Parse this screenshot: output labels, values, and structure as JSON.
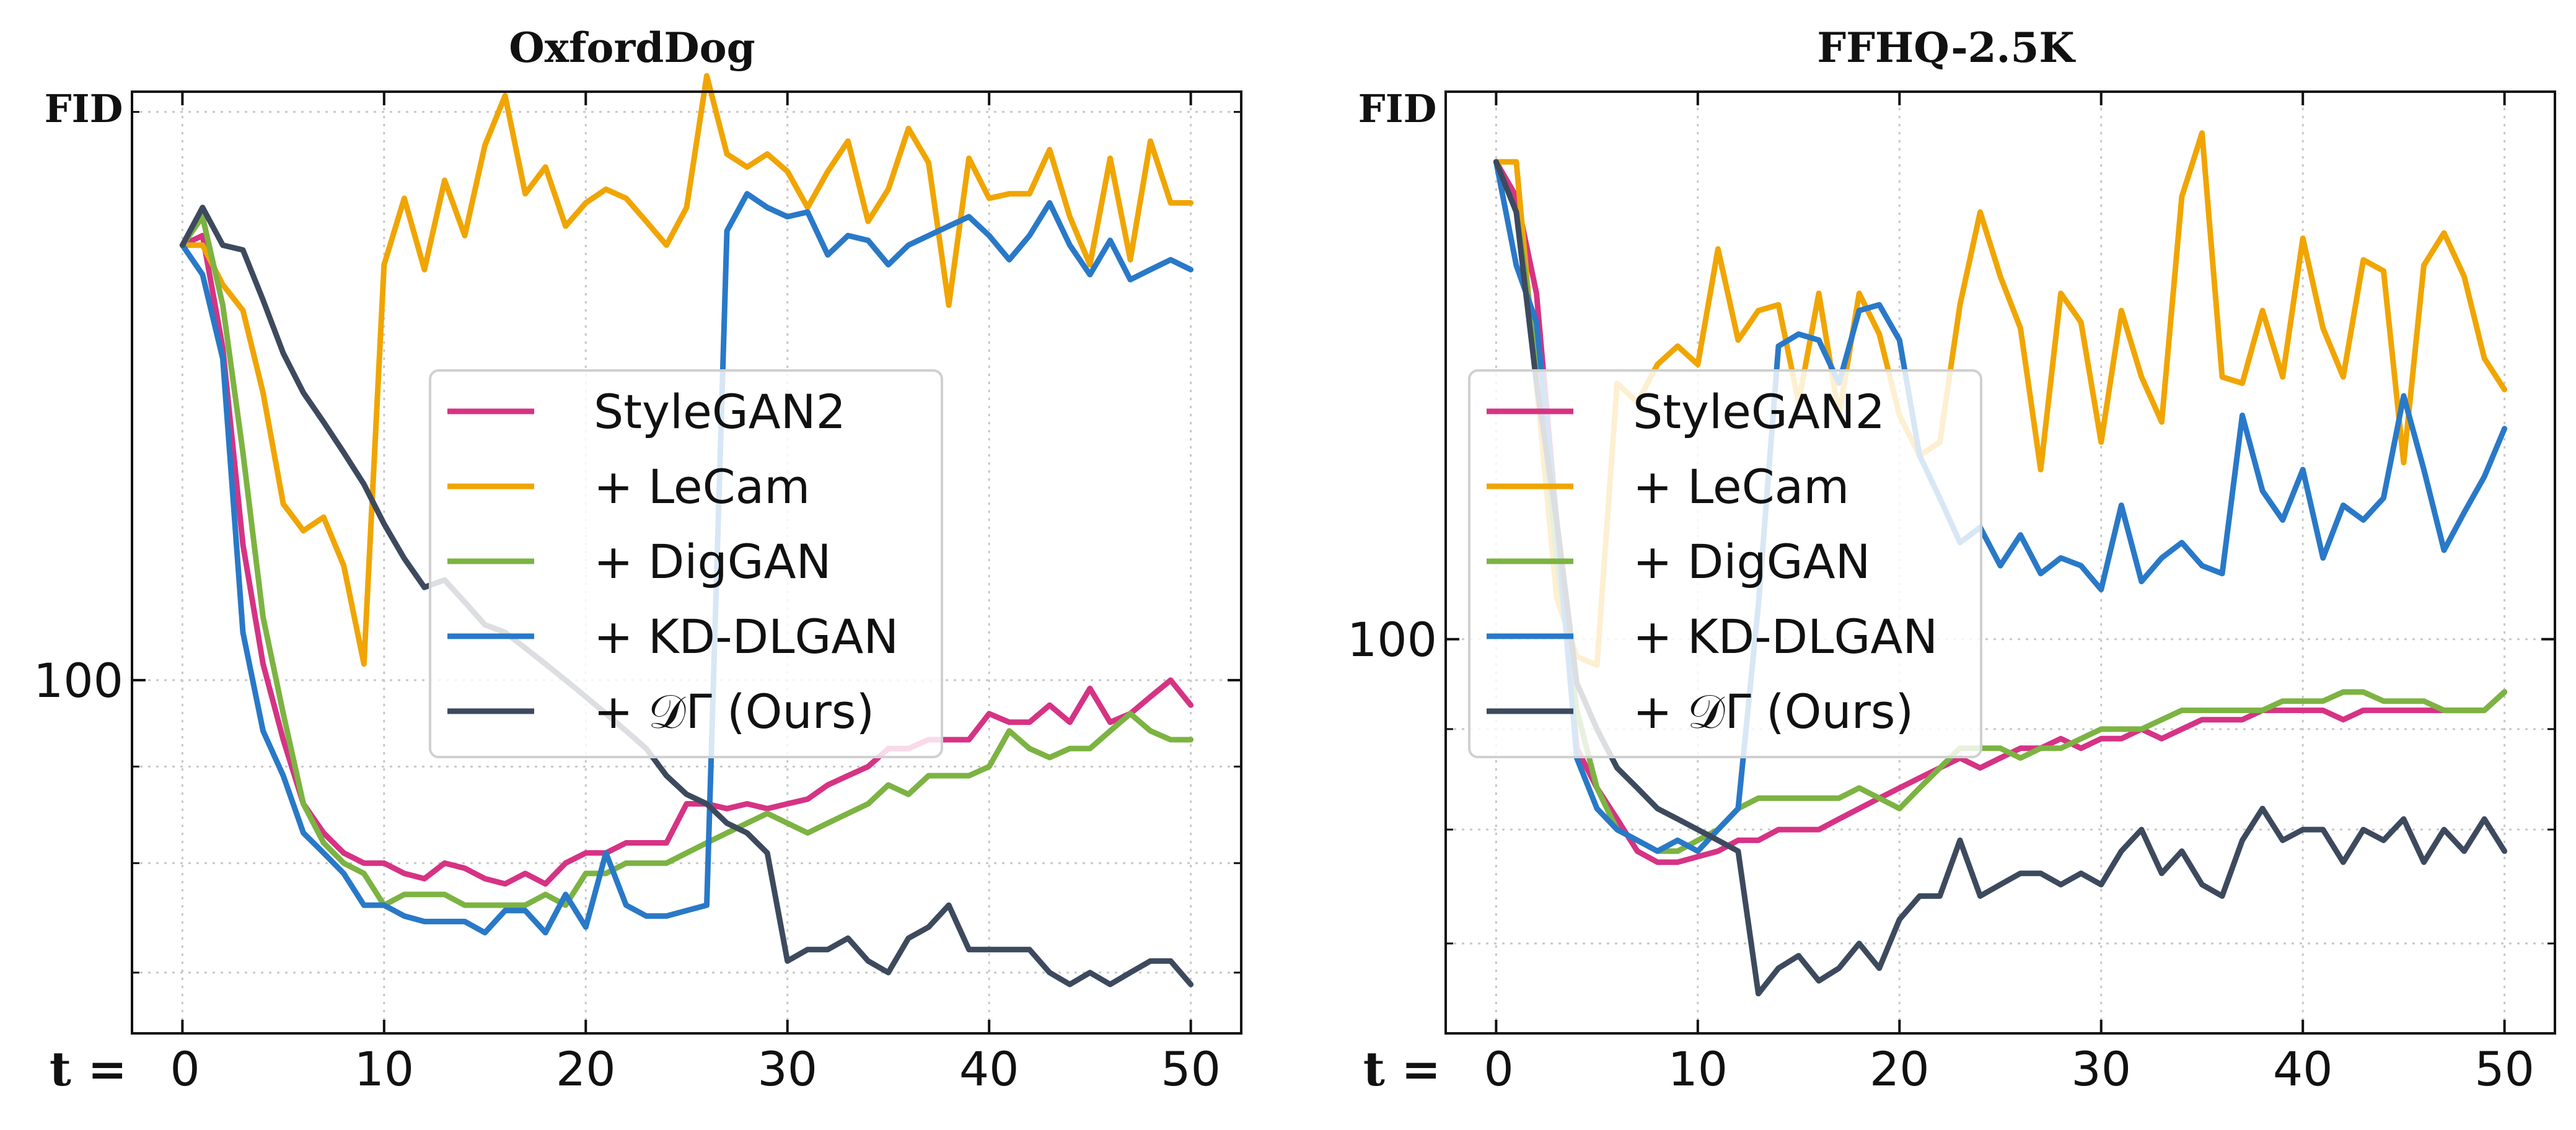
{
  "chart_data": [
    {
      "type": "line",
      "title": "OxfordDog",
      "ylabel": "FID",
      "x_prefix": "t =",
      "x": [
        0,
        1,
        2,
        3,
        4,
        5,
        6,
        7,
        8,
        9,
        10,
        11,
        12,
        13,
        14,
        15,
        16,
        17,
        18,
        19,
        20,
        21,
        22,
        23,
        24,
        25,
        26,
        27,
        28,
        29,
        30,
        31,
        32,
        33,
        34,
        35,
        36,
        37,
        38,
        39,
        40,
        41,
        42,
        43,
        44,
        45,
        46,
        47,
        48,
        49,
        50
      ],
      "xticks": [
        0,
        10,
        20,
        30,
        40,
        50
      ],
      "yticks": [
        100
      ],
      "yscale": "log",
      "ylim": [
        65,
        205
      ],
      "xlim": [
        -2.5,
        52.5
      ],
      "grid": true,
      "legend": "center",
      "series": [
        {
          "name": "StyleGAN2",
          "color": "#d63384",
          "values": [
            170,
            172,
            150,
            118,
            102,
            93,
            86,
            83,
            81,
            80,
            80,
            79,
            78.5,
            80,
            79.5,
            78.5,
            78,
            79,
            78,
            80,
            81,
            81,
            82,
            82,
            82,
            86,
            86,
            85.5,
            86,
            85.5,
            86,
            86.5,
            88,
            89,
            90,
            92,
            92,
            93,
            93,
            93,
            96,
            95,
            95,
            97,
            95,
            99,
            95,
            96,
            98,
            100,
            97
          ]
        },
        {
          "name": "+ LeCam",
          "color": "#f0a500",
          "values": [
            170,
            170,
            162,
            157,
            142,
            124,
            120,
            122,
            115,
            102,
            166,
            180,
            165,
            184,
            172,
            192,
            204,
            181,
            187,
            174,
            179,
            182,
            180,
            175,
            170,
            178,
            209,
            190,
            187,
            190,
            186,
            178,
            186,
            193,
            175,
            182,
            196,
            188,
            158,
            189,
            180,
            181,
            181,
            191,
            176,
            166,
            189,
            167,
            193,
            179,
            179
          ]
        },
        {
          "name": "+ DigGAN",
          "color": "#7cb342",
          "values": [
            170,
            176,
            158,
            132,
            108,
            96,
            86,
            82,
            80,
            79,
            76,
            77,
            77,
            77,
            76,
            76,
            76,
            76,
            77,
            76,
            79,
            79,
            80,
            80,
            80,
            81,
            82,
            83,
            84,
            85,
            84,
            83,
            84,
            85,
            86,
            88,
            87,
            89,
            89,
            89,
            90,
            94,
            92,
            91,
            92,
            92,
            94,
            96,
            94,
            93,
            93
          ]
        },
        {
          "name": "+ KD-DLGAN",
          "color": "#2979c8",
          "values": [
            170,
            164,
            148,
            106,
            94,
            89,
            83,
            81,
            79,
            76,
            76,
            75,
            74.5,
            74.5,
            74.5,
            73.5,
            75.5,
            75.5,
            73.5,
            77,
            74,
            81,
            76,
            75,
            75,
            75.5,
            76,
            173,
            181,
            178,
            176,
            177,
            168,
            172,
            171,
            166,
            170,
            172,
            174,
            176,
            172,
            167,
            172,
            179,
            170,
            164,
            171,
            163,
            165,
            167,
            165
          ]
        },
        {
          "name": "+ 𝒟Γ (Ours)",
          "color": "#3d4a5e",
          "values": [
            170,
            178,
            170,
            169,
            159,
            149,
            142,
            137,
            132,
            127,
            121,
            116,
            112,
            113,
            110,
            107,
            106,
            104,
            102,
            100,
            98,
            96,
            94,
            92,
            89,
            87,
            86,
            84,
            83,
            81,
            71,
            72,
            72,
            73,
            71,
            70,
            73,
            74,
            76,
            72,
            72,
            72,
            72,
            70,
            69,
            70,
            69,
            70,
            71,
            71,
            69
          ]
        }
      ]
    },
    {
      "type": "line",
      "title": "FFHQ-2.5K",
      "ylabel": "FID",
      "x_prefix": "t =",
      "x": [
        0,
        1,
        2,
        3,
        4,
        5,
        6,
        7,
        8,
        9,
        10,
        11,
        12,
        13,
        14,
        15,
        16,
        17,
        18,
        19,
        20,
        21,
        22,
        23,
        24,
        25,
        26,
        27,
        28,
        29,
        30,
        31,
        32,
        33,
        34,
        35,
        36,
        37,
        38,
        39,
        40,
        41,
        42,
        43,
        44,
        45,
        46,
        47,
        48,
        49,
        50
      ],
      "xticks": [
        0,
        10,
        20,
        30,
        40,
        50
      ],
      "yticks": [
        100
      ],
      "yscale": "log",
      "ylim": [
        63,
        190
      ],
      "xlim": [
        -2.5,
        52.5
      ],
      "grid": true,
      "legend": "center",
      "series": [
        {
          "name": "StyleGAN2",
          "color": "#d63384",
          "values": [
            175,
            168,
            150,
            115,
            88,
            84,
            81,
            78,
            77,
            77,
            77.5,
            78,
            79,
            79,
            80,
            80,
            80,
            81,
            82,
            83,
            84,
            85,
            86,
            87,
            86,
            87,
            88,
            88,
            89,
            88,
            89,
            89,
            90,
            89,
            90,
            91,
            91,
            91,
            92,
            92,
            92,
            92,
            91,
            92,
            92,
            92,
            92,
            92,
            92,
            92,
            94
          ]
        },
        {
          "name": "+ LeCam",
          "color": "#f0a500",
          "values": [
            175,
            175,
            135,
            105,
            98,
            97,
            135,
            132,
            138,
            141,
            138,
            158,
            142,
            147,
            148,
            132,
            150,
            130,
            150,
            143,
            130,
            124,
            126,
            148,
            165,
            153,
            144,
            122,
            150,
            145,
            126,
            147,
            136,
            129,
            168,
            181,
            136,
            135,
            147,
            136,
            160,
            144,
            136,
            156,
            154,
            123,
            155,
            161,
            153,
            139,
            134
          ]
        },
        {
          "name": "+ DigGAN",
          "color": "#7cb342",
          "values": [
            175,
            165,
            140,
            110,
            92,
            84,
            80,
            79,
            78,
            78,
            79,
            80,
            82,
            83,
            83,
            83,
            83,
            83,
            84,
            83,
            82,
            84,
            86,
            88,
            88,
            88,
            87,
            88,
            88,
            89,
            90,
            90,
            90,
            91,
            92,
            92,
            92,
            92,
            92,
            93,
            93,
            93,
            94,
            94,
            93,
            93,
            93,
            92,
            92,
            92,
            94
          ]
        },
        {
          "name": "+ KD-DLGAN",
          "color": "#2979c8",
          "values": [
            175,
            155,
            145,
            115,
            87,
            82,
            80,
            79,
            78,
            79,
            78,
            80,
            82,
            104,
            141,
            143,
            142,
            135,
            147,
            148,
            142,
            124,
            118,
            112,
            114,
            109,
            113,
            108,
            110,
            109,
            106,
            117,
            107,
            110,
            112,
            109,
            108,
            130,
            119,
            115,
            122,
            110,
            117,
            115,
            118,
            133,
            122,
            111,
            116,
            121,
            128
          ]
        },
        {
          "name": "+ 𝒟Γ (Ours)",
          "color": "#3d4a5e",
          "values": [
            175,
            165,
            135,
            115,
            95,
            90,
            86,
            84,
            82,
            81,
            80,
            79,
            78,
            66,
            68,
            69,
            67,
            68,
            70,
            68,
            72,
            74,
            74,
            79,
            74,
            75,
            76,
            76,
            75,
            76,
            75,
            78,
            80,
            76,
            78,
            75,
            74,
            79,
            82,
            79,
            80,
            80,
            77,
            80,
            79,
            81,
            77,
            80,
            78,
            81,
            78
          ]
        }
      ]
    }
  ]
}
